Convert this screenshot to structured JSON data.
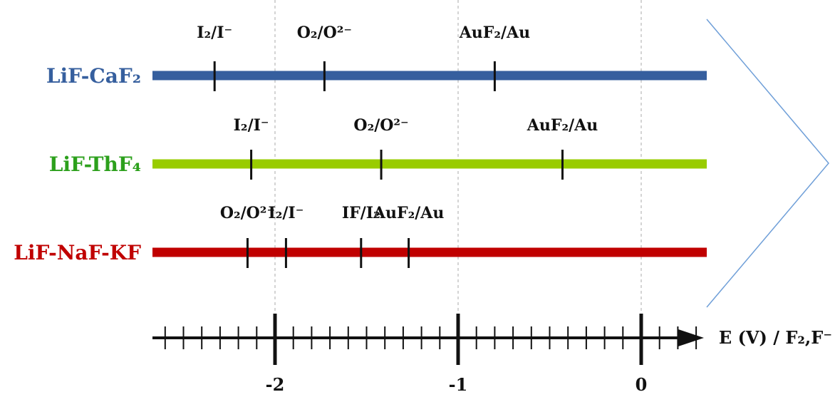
{
  "diagram": {
    "axis": {
      "label": "E (V) / F₂,F⁻",
      "ticks": [
        -2,
        -1,
        0
      ],
      "tick_labels": [
        "-2",
        "-1",
        "0"
      ],
      "range": [
        -2.67,
        0.37
      ],
      "minor_step": 0.1
    },
    "rows": [
      {
        "label": "LiF-CaF₂",
        "color": "#365f9e",
        "couples": [
          {
            "label": "I₂/I⁻",
            "value": -2.33
          },
          {
            "label": "O₂/O²⁻",
            "value": -1.73
          },
          {
            "label": "AuF₂/Au",
            "value": -0.8
          }
        ]
      },
      {
        "label": "LiF-ThF₄",
        "color": "#99cc00",
        "couples": [
          {
            "label": "I₂/I⁻",
            "value": -2.13
          },
          {
            "label": "O₂/O²⁻",
            "value": -1.42
          },
          {
            "label": "AuF₂/Au",
            "value": -0.43
          }
        ]
      },
      {
        "label": "LiF-NaF-KF",
        "color": "#c00000",
        "couples": [
          {
            "label": "O₂/O²⁻",
            "value": -2.15
          },
          {
            "label": "I₂/I⁻",
            "value": -1.94
          },
          {
            "label": "IF/I₂",
            "value": -1.53
          },
          {
            "label": "AuF₂/Au",
            "value": -1.27
          }
        ]
      }
    ],
    "row_label_colors": [
      "#365f9e",
      "#2ca01c",
      "#c00000"
    ]
  }
}
